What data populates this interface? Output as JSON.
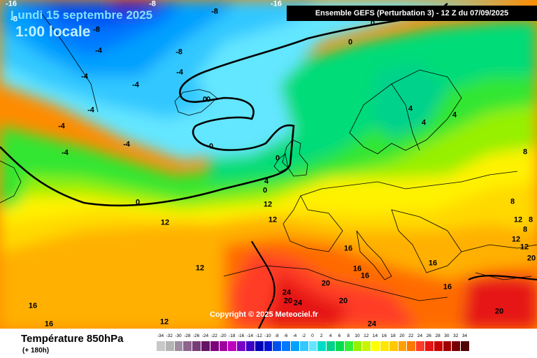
{
  "header": {
    "date": "Lundi 15 septembre 2025",
    "time": "1:00 locale",
    "run": "Ensemble GEFS  (Perturbation 3)  -  12 Z du 07/09/2025"
  },
  "copyright": "Copyright © 2025 Meteociel.fr",
  "legend": {
    "title": "Température 850hPa",
    "subtitle": "(+ 180h)",
    "scale": [
      {
        "v": "-34",
        "c": "#c8c8c8"
      },
      {
        "v": "-32",
        "c": "#b4b4b4"
      },
      {
        "v": "-30",
        "c": "#a08ca0"
      },
      {
        "v": "-28",
        "c": "#8c648c"
      },
      {
        "v": "-26",
        "c": "#783c78"
      },
      {
        "v": "-24",
        "c": "#641464"
      },
      {
        "v": "-22",
        "c": "#7d007d"
      },
      {
        "v": "-20",
        "c": "#a000a0"
      },
      {
        "v": "-18",
        "c": "#be00be"
      },
      {
        "v": "-16",
        "c": "#7800c8"
      },
      {
        "v": "-14",
        "c": "#3c00c8"
      },
      {
        "v": "-12",
        "c": "#0000b4"
      },
      {
        "v": "-10",
        "c": "#0014d2"
      },
      {
        "v": "-8",
        "c": "#0050f0"
      },
      {
        "v": "-6",
        "c": "#0078ff"
      },
      {
        "v": "-4",
        "c": "#00a0ff"
      },
      {
        "v": "-2",
        "c": "#32c8ff"
      },
      {
        "v": "0",
        "c": "#64e6ff"
      },
      {
        "v": "2",
        "c": "#00dcc8"
      },
      {
        "v": "4",
        "c": "#00d28c"
      },
      {
        "v": "6",
        "c": "#00dc50"
      },
      {
        "v": "8",
        "c": "#32f032"
      },
      {
        "v": "10",
        "c": "#96f000"
      },
      {
        "v": "12",
        "c": "#c8f500"
      },
      {
        "v": "14",
        "c": "#ffff00"
      },
      {
        "v": "16",
        "c": "#ffe600"
      },
      {
        "v": "18",
        "c": "#ffc800"
      },
      {
        "v": "20",
        "c": "#ffa000"
      },
      {
        "v": "22",
        "c": "#ff7800"
      },
      {
        "v": "24",
        "c": "#ff3c28"
      },
      {
        "v": "26",
        "c": "#e61414"
      },
      {
        "v": "28",
        "c": "#c80000"
      },
      {
        "v": "30",
        "c": "#a00000"
      },
      {
        "v": "32",
        "c": "#780000"
      },
      {
        "v": "34",
        "c": "#500000"
      }
    ]
  },
  "map_labels": [
    {
      "t": "-16"
    },
    {
      "t": "-8"
    },
    {
      "t": "-4"
    },
    {
      "t": "-8"
    },
    {
      "t": "-8"
    },
    {
      "t": "-8"
    },
    {
      "t": "-4"
    },
    {
      "t": "-4"
    },
    {
      "t": "-4"
    },
    {
      "t": "-4"
    },
    {
      "t": "-4"
    },
    {
      "t": "-4"
    },
    {
      "t": "-4"
    },
    {
      "t": "0"
    },
    {
      "t": "0"
    },
    {
      "t": "0"
    },
    {
      "t": "0"
    },
    {
      "t": "0"
    },
    {
      "t": "0"
    },
    {
      "t": "0"
    },
    {
      "t": "0"
    },
    {
      "t": "4"
    },
    {
      "t": "4"
    },
    {
      "t": "4"
    },
    {
      "t": "8"
    },
    {
      "t": "8"
    },
    {
      "t": "12"
    },
    {
      "t": "12"
    },
    {
      "t": "12"
    },
    {
      "t": "12"
    },
    {
      "t": "12"
    },
    {
      "t": "12"
    },
    {
      "t": "12"
    },
    {
      "t": "16"
    },
    {
      "t": "16"
    },
    {
      "t": "16"
    },
    {
      "t": "16"
    },
    {
      "t": "16"
    },
    {
      "t": "16"
    },
    {
      "t": "16"
    },
    {
      "t": "20"
    },
    {
      "t": "20"
    },
    {
      "t": "20"
    },
    {
      "t": "20"
    },
    {
      "t": "24"
    },
    {
      "t": "24"
    },
    {
      "t": "24"
    },
    {
      "t": "-16"
    },
    {
      "t": "-8"
    },
    {
      "t": "8"
    },
    {
      "t": "12"
    },
    {
      "t": "8"
    },
    {
      "t": "4"
    },
    {
      "t": "20"
    }
  ]
}
